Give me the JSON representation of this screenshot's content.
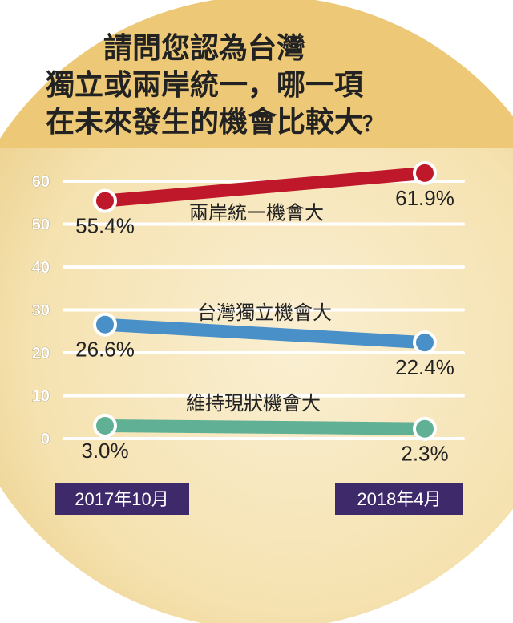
{
  "chart_data": {
    "type": "line",
    "title_lines": [
      "請問您認為台灣",
      "獨立或兩岸統一，哪一項",
      "在未來發生的機會比較大"
    ],
    "title_mark": "？",
    "categories": [
      "2017年10月",
      "2018年4月"
    ],
    "y_ticks": [
      0,
      10,
      20,
      30,
      40,
      50,
      60
    ],
    "ylim": [
      0,
      63
    ],
    "grid": true,
    "series": [
      {
        "name": "兩岸統一機會大",
        "values": [
          55.4,
          61.9
        ],
        "labels": [
          "55.4%",
          "61.9%"
        ],
        "color": "#c0182b"
      },
      {
        "name": "台灣獨立機會大",
        "values": [
          26.6,
          22.4
        ],
        "labels": [
          "26.6%",
          "22.4%"
        ],
        "color": "#4a90c8"
      },
      {
        "name": "維持現狀機會大",
        "values": [
          3.0,
          2.3
        ],
        "labels": [
          "3.0%",
          "2.3%"
        ],
        "color": "#5fb095"
      }
    ],
    "colors": {
      "circle_outer": "#f2d89a",
      "circle_inner": "#f9eccd",
      "title_band": "#ecc877",
      "grid": "#ffffff",
      "category_box": "#3e2a6b"
    }
  }
}
